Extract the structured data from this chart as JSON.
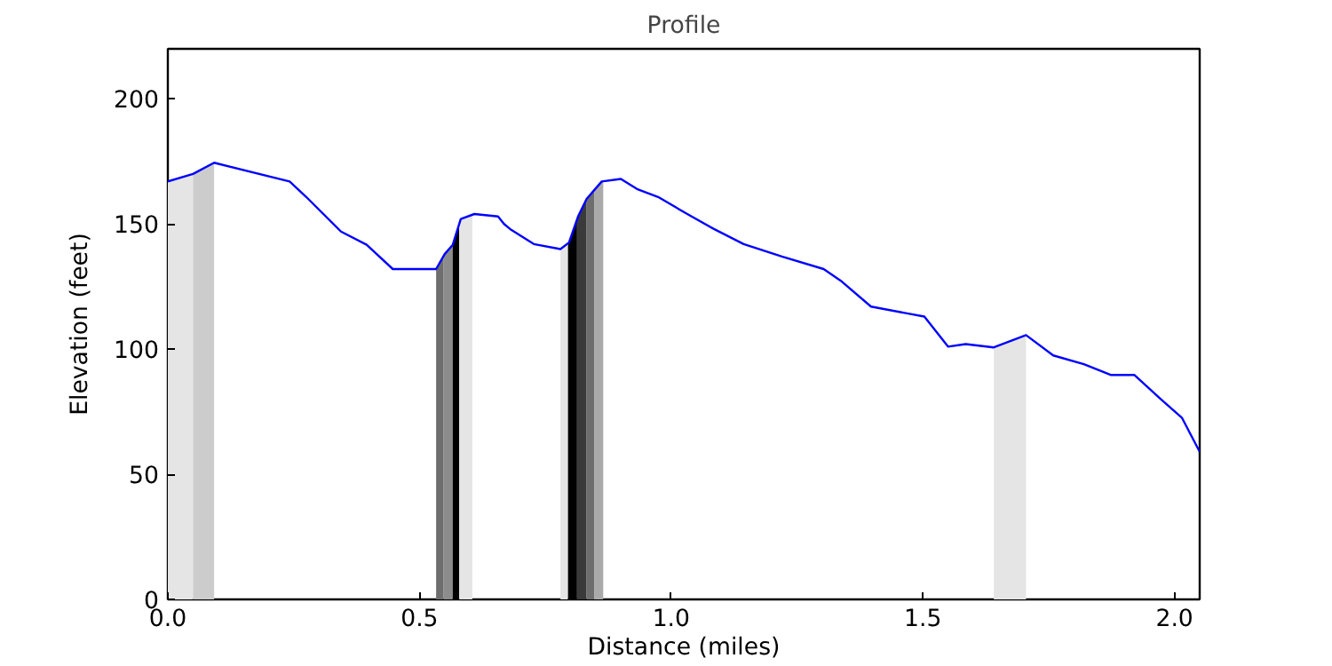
{
  "chart_data": {
    "type": "line",
    "title": "Profile",
    "xlabel": "Distance (miles)",
    "ylabel": "Elevation (feet)",
    "xlim": [
      0,
      2.05
    ],
    "ylim": [
      0,
      220
    ],
    "xticks": [
      {
        "value": 0,
        "label": "0.0"
      },
      {
        "value": 0.5,
        "label": "0.5"
      },
      {
        "value": 1,
        "label": "1.0"
      },
      {
        "value": 1.5,
        "label": "1.5"
      },
      {
        "value": 2,
        "label": "2.0"
      }
    ],
    "yticks": [
      0,
      50,
      100,
      150,
      200
    ],
    "grid": false,
    "series": [
      {
        "type": "area",
        "color": "#e5e5e5",
        "x": [
          0,
          0.05
        ],
        "values": [
          167,
          170
        ]
      },
      {
        "type": "area",
        "color": "#cccccc",
        "x": [
          0.05,
          0.092
        ],
        "values": [
          170,
          174.5
        ]
      },
      {
        "type": "area",
        "color": "#6e6e6e",
        "x": [
          0.533,
          0.548
        ],
        "values": [
          132,
          137.5
        ]
      },
      {
        "type": "area",
        "color": "#8c8c8c",
        "x": [
          0.548,
          0.566
        ],
        "values": [
          137.5,
          141.7
        ]
      },
      {
        "type": "area",
        "color": "#000000",
        "x": [
          0.566,
          0.579
        ],
        "values": [
          141.7,
          150
        ]
      },
      {
        "type": "area",
        "color": "#e5e5e5",
        "x": [
          0.579,
          0.582,
          0.605
        ],
        "values": [
          150,
          152,
          154
        ]
      },
      {
        "type": "area",
        "color": "#e5e5e5",
        "x": [
          0.78,
          0.795
        ],
        "values": [
          140,
          142
        ]
      },
      {
        "type": "area",
        "color": "#000000",
        "x": [
          0.795,
          0.797,
          0.813
        ],
        "values": [
          142,
          142.6,
          152
        ]
      },
      {
        "type": "area",
        "color": "#3a3a3a",
        "x": [
          0.813,
          0.815,
          0.832
        ],
        "values": [
          152,
          153,
          160
        ]
      },
      {
        "type": "area",
        "color": "#6e6e6e",
        "x": [
          0.832,
          0.847
        ],
        "values": [
          160,
          164
        ]
      },
      {
        "type": "area",
        "color": "#aaaaaa",
        "x": [
          0.847,
          0.862,
          0.865
        ],
        "values": [
          164,
          167,
          167
        ]
      },
      {
        "type": "area",
        "color": "#e5e5e5",
        "x": [
          1.641,
          1.705
        ],
        "values": [
          100.7,
          105.6
        ]
      },
      {
        "color": "#0000ff",
        "x": [
          0,
          0.05,
          0.092,
          0.242,
          0.274,
          0.344,
          0.395,
          0.447,
          0.533,
          0.55,
          0.566,
          0.582,
          0.609,
          0.656,
          0.668,
          0.68,
          0.727,
          0.78,
          0.797,
          0.815,
          0.832,
          0.862,
          0.9,
          0.932,
          0.974,
          1.032,
          1.085,
          1.144,
          1.22,
          1.303,
          1.339,
          1.397,
          1.503,
          1.55,
          1.585,
          1.641,
          1.705,
          1.759,
          1.82,
          1.873,
          1.92,
          1.973,
          2.015,
          2.05
        ],
        "values": [
          167,
          170,
          174.5,
          167,
          161,
          147,
          141.7,
          132,
          132,
          138,
          141.7,
          152,
          154,
          153,
          150,
          148,
          142,
          140,
          142.6,
          153,
          160,
          167,
          168,
          164,
          160.8,
          154,
          148,
          142,
          137,
          132,
          127,
          117,
          113,
          101,
          102,
          100.7,
          105.6,
          97.5,
          94,
          89.7,
          89.7,
          80,
          72.5,
          59
        ]
      }
    ]
  }
}
